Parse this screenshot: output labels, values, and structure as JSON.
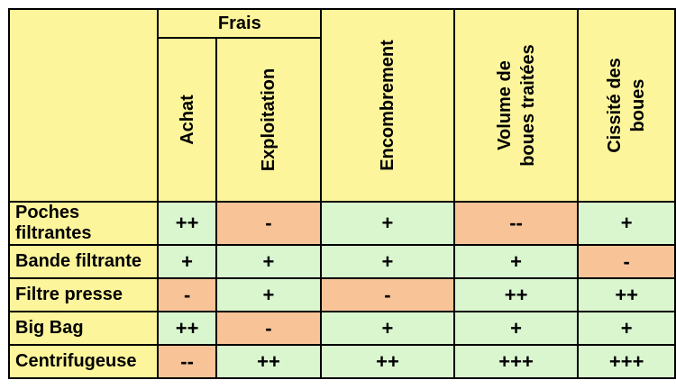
{
  "header": {
    "group_label": "Frais",
    "columns": [
      {
        "line1": "Achat",
        "line2": ""
      },
      {
        "line1": "Exploitation",
        "line2": ""
      },
      {
        "line1": "Encombrement",
        "line2": ""
      },
      {
        "line1": "Volume de",
        "line2": "boues traitées"
      },
      {
        "line1": "Cissité des",
        "line2": "boues"
      }
    ]
  },
  "rows": [
    {
      "label": "Poches filtrantes",
      "values": [
        "++",
        "-",
        "+",
        "--",
        "+"
      ]
    },
    {
      "label": "Bande filtrante",
      "values": [
        "+",
        "+",
        "+",
        "+",
        "-"
      ]
    },
    {
      "label": "Filtre presse",
      "values": [
        "-",
        "+",
        "-",
        "++",
        "++"
      ]
    },
    {
      "label": "Big Bag",
      "values": [
        "++",
        "-",
        "+",
        "+",
        "+"
      ]
    },
    {
      "label": "Centrifugeuse",
      "values": [
        "--",
        "++",
        "++",
        "+++",
        "+++"
      ]
    }
  ],
  "colors": {
    "header_bg": "#fdf59b",
    "positive_bg": "#d9f6cf",
    "negative_bg": "#f9c398",
    "border": "#000000"
  }
}
